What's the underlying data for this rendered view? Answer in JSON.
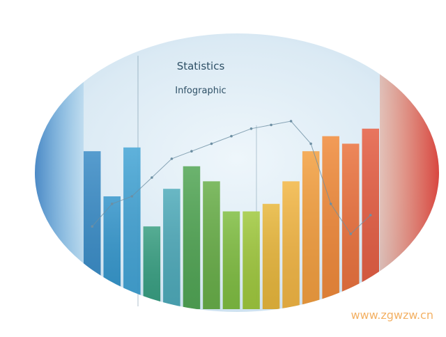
{
  "chart_data": {
    "type": "bar",
    "title": "Statistics",
    "subtitle": "Infographic",
    "values": [
      210,
      150,
      215,
      110,
      160,
      190,
      170,
      130,
      130,
      140,
      170,
      210,
      230,
      220,
      240
    ],
    "line_values": [
      110,
      140,
      150,
      175,
      200,
      210,
      220,
      230,
      240,
      245,
      250,
      220,
      140,
      100,
      125
    ],
    "bar_colors": [
      "#2f86c3",
      "#2a90c8",
      "#3a9fd3",
      "#2e9a7a",
      "#47a6b6",
      "#4aa14c",
      "#62ab3f",
      "#7aba38",
      "#9cc634",
      "#e8b332",
      "#f2b23a",
      "#f39a35",
      "#f0842f",
      "#ea6a33",
      "#e45538"
    ],
    "ylim": [
      0,
      300
    ],
    "grid": false,
    "watermark": "www.zgwzw.cn"
  }
}
